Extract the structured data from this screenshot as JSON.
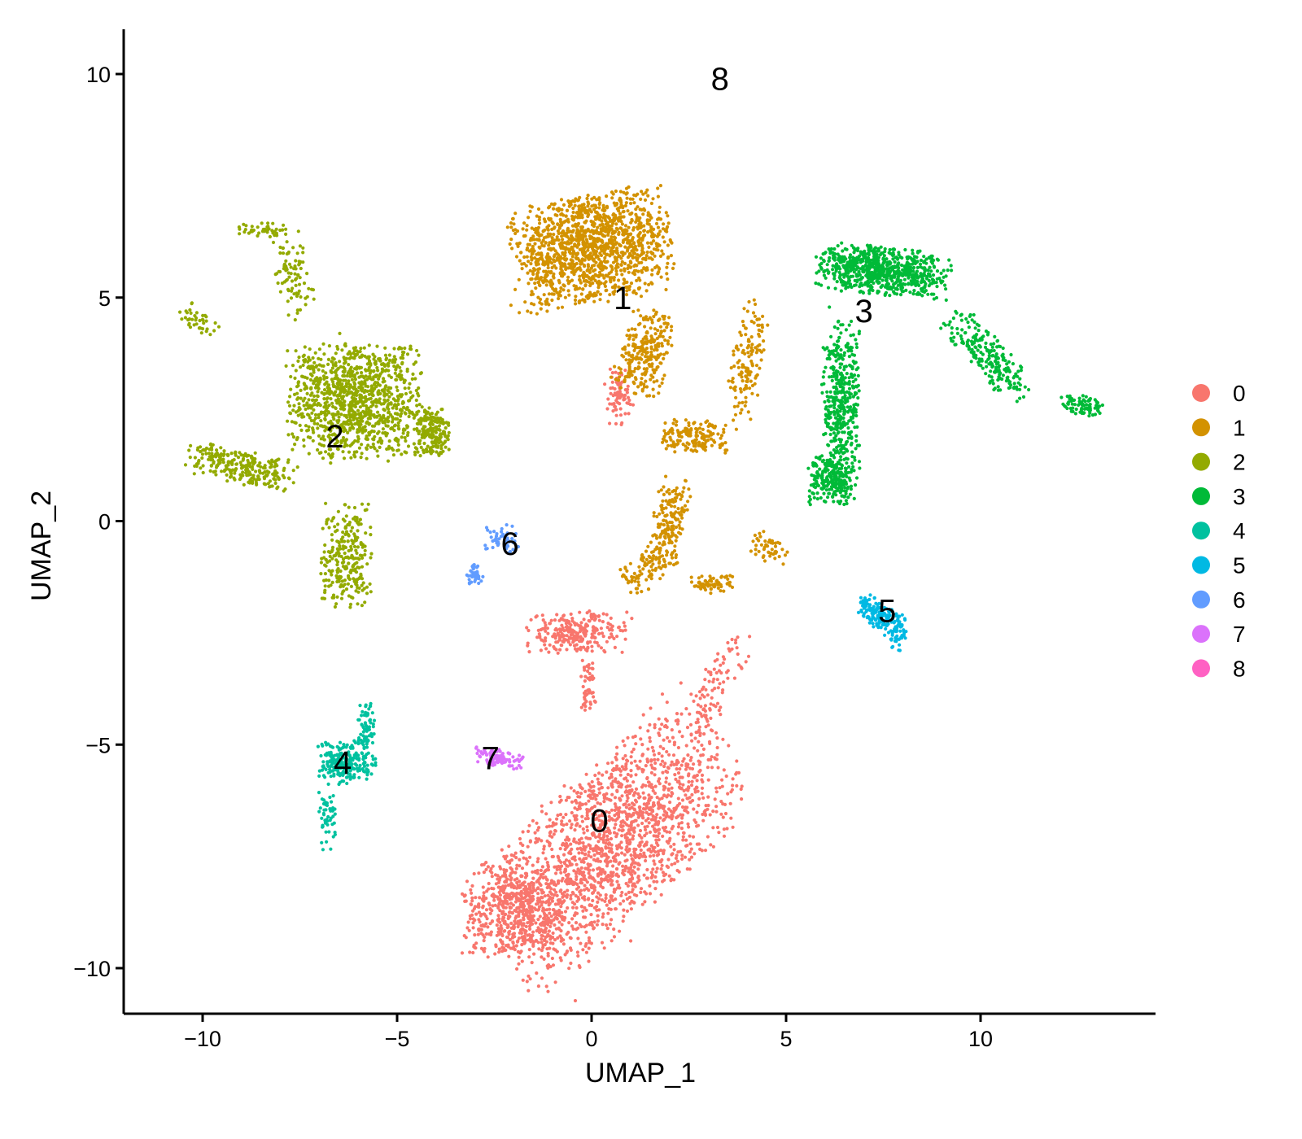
{
  "chart_data": {
    "type": "scatter",
    "xlabel": "UMAP_1",
    "ylabel": "UMAP_2",
    "xlim": [
      -12.0,
      14.5
    ],
    "ylim": [
      -11.0,
      11.0
    ],
    "xticks": [
      -10,
      -5,
      0,
      5,
      10
    ],
    "xtick_labels": [
      "−10",
      "−5",
      "0",
      "5",
      "10"
    ],
    "yticks": [
      -10,
      -5,
      0,
      5,
      10
    ],
    "ytick_labels": [
      "−10",
      "−5",
      "0",
      "5",
      "10"
    ],
    "grid": false,
    "legend_position": "right",
    "legend": [
      {
        "name": "0",
        "color": "#F8766D"
      },
      {
        "name": "1",
        "color": "#D39200"
      },
      {
        "name": "2",
        "color": "#93AA00"
      },
      {
        "name": "3",
        "color": "#00BA38"
      },
      {
        "name": "4",
        "color": "#00C19F"
      },
      {
        "name": "5",
        "color": "#00B9E3"
      },
      {
        "name": "6",
        "color": "#619CFF"
      },
      {
        "name": "7",
        "color": "#DB72FB"
      },
      {
        "name": "8",
        "color": "#FF61C3"
      }
    ],
    "clusters": [
      {
        "name": "0",
        "color": "#F8766D",
        "label_pos": [
          0.2,
          -6.7
        ],
        "regions": [
          {
            "center": [
              0.5,
              -7.2
            ],
            "spread": [
              3.4,
              1.6
            ],
            "angle": 38,
            "n": 1800
          },
          {
            "center": [
              -1.9,
              -8.7
            ],
            "spread": [
              1.3,
              1.0
            ],
            "angle": 0,
            "n": 500
          },
          {
            "center": [
              -0.4,
              -2.5
            ],
            "spread": [
              1.2,
              0.45
            ],
            "angle": 0,
            "n": 260
          },
          {
            "center": [
              -0.1,
              -3.7
            ],
            "spread": [
              0.2,
              0.6
            ],
            "angle": 0,
            "n": 50
          },
          {
            "center": [
              0.7,
              2.8
            ],
            "spread": [
              0.4,
              0.6
            ],
            "angle": 0,
            "n": 80
          },
          {
            "center": [
              3.2,
              -3.7
            ],
            "spread": [
              0.45,
              1.3
            ],
            "angle": -25,
            "n": 90
          }
        ]
      },
      {
        "name": "1",
        "color": "#D39200",
        "label_pos": [
          0.8,
          5.0
        ],
        "regions": [
          {
            "center": [
              0.0,
              6.1
            ],
            "spread": [
              1.9,
              1.1
            ],
            "angle": 10,
            "n": 1400
          },
          {
            "center": [
              1.4,
              3.8
            ],
            "spread": [
              0.6,
              0.9
            ],
            "angle": -20,
            "n": 250
          },
          {
            "center": [
              2.6,
              1.9
            ],
            "spread": [
              0.8,
              0.35
            ],
            "angle": 0,
            "n": 160
          },
          {
            "center": [
              2.0,
              0.0
            ],
            "spread": [
              0.4,
              0.9
            ],
            "angle": -15,
            "n": 160
          },
          {
            "center": [
              1.5,
              -1.0
            ],
            "spread": [
              0.7,
              0.4
            ],
            "angle": 30,
            "n": 100
          },
          {
            "center": [
              3.1,
              -1.4
            ],
            "spread": [
              0.5,
              0.2
            ],
            "angle": 0,
            "n": 70
          },
          {
            "center": [
              4.0,
              3.5
            ],
            "spread": [
              0.4,
              1.4
            ],
            "angle": -15,
            "n": 140
          },
          {
            "center": [
              4.6,
              -0.6
            ],
            "spread": [
              0.5,
              0.3
            ],
            "angle": -30,
            "n": 50
          }
        ]
      },
      {
        "name": "2",
        "color": "#93AA00",
        "label_pos": [
          -6.6,
          1.9
        ],
        "regions": [
          {
            "center": [
              -6.1,
              2.7
            ],
            "spread": [
              1.6,
              1.2
            ],
            "angle": 0,
            "n": 1100
          },
          {
            "center": [
              -4.1,
              2.0
            ],
            "spread": [
              0.4,
              0.5
            ],
            "angle": 0,
            "n": 200
          },
          {
            "center": [
              -9.0,
              1.2
            ],
            "spread": [
              1.3,
              0.35
            ],
            "angle": -10,
            "n": 260
          },
          {
            "center": [
              -6.3,
              -0.8
            ],
            "spread": [
              0.6,
              1.1
            ],
            "angle": 0,
            "n": 260
          },
          {
            "center": [
              -7.7,
              5.6
            ],
            "spread": [
              0.4,
              1.0
            ],
            "angle": 15,
            "n": 90
          },
          {
            "center": [
              -8.5,
              6.5
            ],
            "spread": [
              0.6,
              0.15
            ],
            "angle": 0,
            "n": 40
          },
          {
            "center": [
              -10.1,
              4.5
            ],
            "spread": [
              0.5,
              0.25
            ],
            "angle": -25,
            "n": 40
          }
        ]
      },
      {
        "name": "3",
        "color": "#00BA38",
        "label_pos": [
          7.0,
          4.7
        ],
        "regions": [
          {
            "center": [
              7.5,
              5.6
            ],
            "spread": [
              1.6,
              0.5
            ],
            "angle": -5,
            "n": 750
          },
          {
            "center": [
              6.4,
              2.5
            ],
            "spread": [
              0.45,
              1.8
            ],
            "angle": 0,
            "n": 450
          },
          {
            "center": [
              6.2,
              0.9
            ],
            "spread": [
              0.6,
              0.5
            ],
            "angle": 0,
            "n": 200
          },
          {
            "center": [
              10.2,
              3.7
            ],
            "spread": [
              1.2,
              0.4
            ],
            "angle": -45,
            "n": 220
          },
          {
            "center": [
              12.6,
              2.6
            ],
            "spread": [
              0.5,
              0.2
            ],
            "angle": -10,
            "n": 80
          }
        ]
      },
      {
        "name": "4",
        "color": "#00C19F",
        "label_pos": [
          -6.4,
          -5.4
        ],
        "regions": [
          {
            "center": [
              -6.3,
              -5.4
            ],
            "spread": [
              0.7,
              0.45
            ],
            "angle": 0,
            "n": 230
          },
          {
            "center": [
              -5.8,
              -4.6
            ],
            "spread": [
              0.2,
              0.5
            ],
            "angle": 0,
            "n": 60
          },
          {
            "center": [
              -6.8,
              -6.7
            ],
            "spread": [
              0.25,
              0.6
            ],
            "angle": 0,
            "n": 50
          }
        ]
      },
      {
        "name": "5",
        "color": "#00B9E3",
        "label_pos": [
          7.6,
          -2.0
        ],
        "regions": [
          {
            "center": [
              7.4,
              -2.1
            ],
            "spread": [
              0.6,
              0.3
            ],
            "angle": -30,
            "n": 150
          },
          {
            "center": [
              7.9,
              -2.5
            ],
            "spread": [
              0.2,
              0.4
            ],
            "angle": 0,
            "n": 50
          }
        ]
      },
      {
        "name": "6",
        "color": "#619CFF",
        "label_pos": [
          -2.1,
          -0.5
        ],
        "regions": [
          {
            "center": [
              -2.3,
              -0.4
            ],
            "spread": [
              0.4,
              0.3
            ],
            "angle": 0,
            "n": 50
          },
          {
            "center": [
              -3.0,
              -1.2
            ],
            "spread": [
              0.2,
              0.25
            ],
            "angle": 0,
            "n": 40
          }
        ]
      },
      {
        "name": "7",
        "color": "#DB72FB",
        "label_pos": [
          -2.6,
          -5.3
        ],
        "regions": [
          {
            "center": [
              -2.4,
              -5.3
            ],
            "spread": [
              0.6,
              0.18
            ],
            "angle": -10,
            "n": 100
          }
        ]
      },
      {
        "name": "8",
        "color": "#FF61C3",
        "label_pos": [
          3.3,
          9.9
        ],
        "regions": []
      }
    ]
  }
}
